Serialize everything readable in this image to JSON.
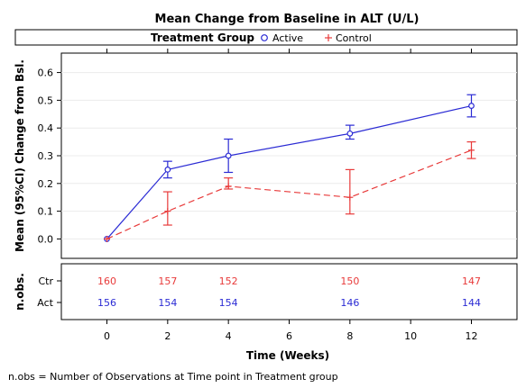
{
  "chart_data": {
    "type": "line",
    "title": "Mean Change from Baseline in ALT (U/L)",
    "legend": {
      "title": "Treatment Group",
      "position": "top",
      "entries": [
        "Active",
        "Control"
      ]
    },
    "xlabel": "Time (Weeks)",
    "ylabel": "Mean (95%CI) Change from Bsl.",
    "xlim": [
      -1.5,
      13.5
    ],
    "ylim": [
      -0.07,
      0.67
    ],
    "x_ticks": [
      "0",
      "2",
      "4",
      "6",
      "8",
      "10",
      "12"
    ],
    "y_ticks": [
      "0.0",
      "0.1",
      "0.2",
      "0.3",
      "0.4",
      "0.5",
      "0.6"
    ],
    "x_tick_values": [
      0,
      2,
      4,
      6,
      8,
      10,
      12
    ],
    "y_tick_values": [
      0,
      0.1,
      0.2,
      0.3,
      0.4,
      0.5,
      0.6
    ],
    "grid": true,
    "series": [
      {
        "name": "Active",
        "color": "#2b2bd4",
        "marker": "circle",
        "line_style": "solid",
        "x": [
          0,
          2,
          4,
          8,
          12
        ],
        "y": [
          0.0,
          0.25,
          0.3,
          0.38,
          0.48
        ],
        "lower": [
          0.0,
          0.22,
          0.24,
          0.36,
          0.44
        ],
        "upper": [
          0.0,
          0.28,
          0.36,
          0.41,
          0.52
        ]
      },
      {
        "name": "Control",
        "color": "#e83a3a",
        "marker": "plus",
        "line_style": "dashed",
        "x": [
          0,
          2,
          4,
          8,
          12
        ],
        "y": [
          0.0,
          0.1,
          0.19,
          0.15,
          0.32
        ],
        "lower": [
          0.0,
          0.05,
          0.18,
          0.09,
          0.29
        ],
        "upper": [
          0.0,
          0.17,
          0.22,
          0.25,
          0.35
        ]
      }
    ],
    "nobs": {
      "title": "n.obs.",
      "x": [
        0,
        2,
        4,
        8,
        12
      ],
      "rows": [
        {
          "label": "Ctr",
          "color": "#e83a3a",
          "values": [
            "160",
            "157",
            "152",
            "150",
            "147"
          ]
        },
        {
          "label": "Act",
          "color": "#2b2bd4",
          "values": [
            "156",
            "154",
            "154",
            "146",
            "144"
          ]
        }
      ]
    },
    "footnote": "n.obs = Number of Observations at Time point in Treatment group"
  }
}
